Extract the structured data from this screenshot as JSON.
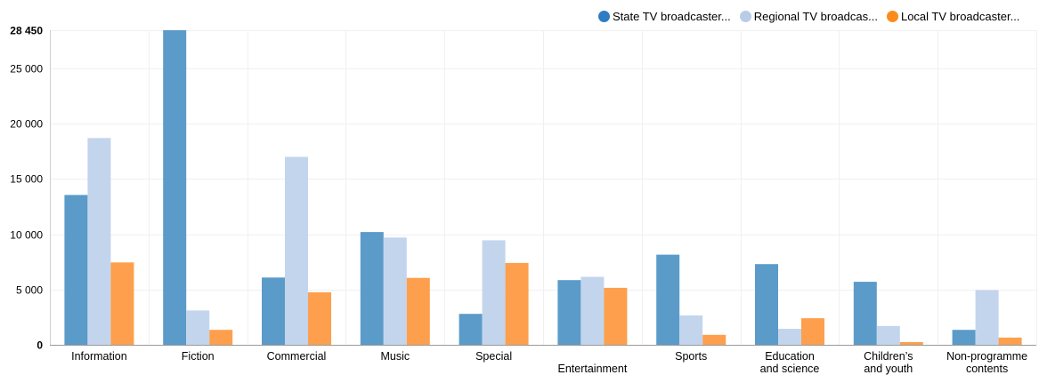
{
  "chart_data": {
    "type": "bar",
    "categories": [
      [
        "Information"
      ],
      [
        "Fiction"
      ],
      [
        "Commercial"
      ],
      [
        "Music"
      ],
      [
        "Special"
      ],
      [
        "",
        "Entertainment"
      ],
      [
        "Sports"
      ],
      [
        "Education",
        "and science"
      ],
      [
        "Children’s",
        "and youth"
      ],
      [
        "Non-programme",
        "contents"
      ]
    ],
    "series": [
      {
        "name": "State TV broadcaster...",
        "color": "#5b9bc9",
        "values": [
          13550,
          28450,
          6080,
          10200,
          2800,
          5850,
          8150,
          7300,
          5700,
          1350
        ]
      },
      {
        "name": "Regional TV broadcas...",
        "color": "#c3d5ed",
        "values": [
          18700,
          3100,
          17000,
          9700,
          9450,
          6150,
          2650,
          1450,
          1700,
          4950
        ]
      },
      {
        "name": "Local TV broadcaster...",
        "color": "#fd9f4c",
        "values": [
          7450,
          1350,
          4750,
          6050,
          7400,
          5150,
          900,
          2400,
          250,
          650
        ]
      }
    ],
    "legend_swatch_colors": [
      "#2f7cc2",
      "#b8cce8",
      "#fd8b1c"
    ],
    "y_ticks": [
      {
        "value": 0,
        "label": "0"
      },
      {
        "value": 5000,
        "label": "5 000"
      },
      {
        "value": 10000,
        "label": "10 000"
      },
      {
        "value": 15000,
        "label": "15 000"
      },
      {
        "value": 20000,
        "label": "20 000"
      },
      {
        "value": 25000,
        "label": "25 000"
      },
      {
        "value": 28450,
        "label": "28 450"
      }
    ],
    "ylim": [
      0,
      28450
    ],
    "grid": true,
    "legend_position": "top-right",
    "title": "",
    "xlabel": "",
    "ylabel": ""
  }
}
